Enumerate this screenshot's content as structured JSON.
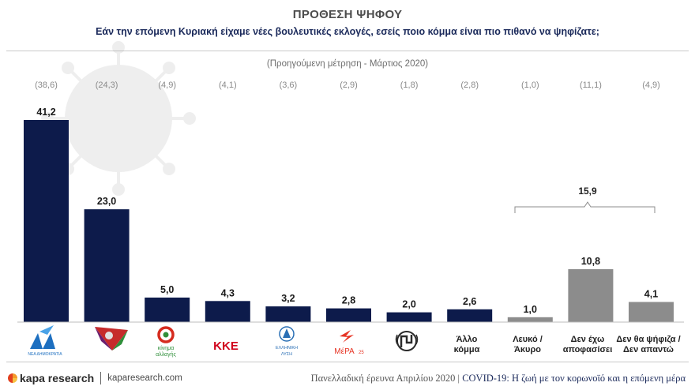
{
  "header": {
    "title": "ΠΡΟΘΕΣΗ ΨΗΦΟΥ",
    "subtitle": "Εάν την επόμενη Κυριακή είχαμε νέες βουλευτικές εκλογές, εσείς ποιο κόμμα είναι πιο πιθανό να ψηφίζατε;",
    "previous_note": "(Προηγούμενη μέτρηση - Μάρτιος 2020)"
  },
  "chart_data": {
    "type": "bar",
    "categories": [
      "ΝΔ",
      "ΣΥΡΙΖΑ",
      "ΚΙΝΑΛ",
      "ΚΚΕ",
      "Ελληνική Λύση",
      "ΜέΡΑ25",
      "Χρυσή Αυγή",
      "Άλλο κόμμα",
      "Λευκό / Άκυρο",
      "Δεν έχω αποφασίσει",
      "Δεν θα ψήφιζα / Δεν απαντώ"
    ],
    "category_labels": {
      "nd_logo_text": "ΝΕΑ ΔΗΜΟΚΡΑΤΙΑ",
      "kinal_line1": "κίνημα",
      "kinal_line2": "αλλαγής",
      "kke": "ΚΚΕ",
      "ellisi_line1": "ΕΛΛΗΝΙΚΗ",
      "ellisi_line2": "ΛΥΣΗ",
      "mera": "ΜέΡΑ",
      "mera_sub": "25",
      "allo_line1": "Άλλο",
      "allo_line2": "κόμμα",
      "lefko_line1": "Λευκό /",
      "lefko_line2": "Άκυρο",
      "den_line1": "Δεν έχω",
      "den_line2": "αποφασίσει",
      "dthps_line1": "Δεν θα ψήφιζα /",
      "dthps_line2": "Δεν απαντώ"
    },
    "values": [
      41.2,
      23.0,
      5.0,
      4.3,
      3.2,
      2.8,
      2.0,
      2.6,
      1.0,
      10.8,
      4.1
    ],
    "value_labels": [
      "41,2",
      "23,0",
      "5,0",
      "4,3",
      "3,2",
      "2,8",
      "2,0",
      "2,6",
      "1,0",
      "10,8",
      "4,1"
    ],
    "previous_labels": [
      "(38,6)",
      "(24,3)",
      "(4,9)",
      "(4,1)",
      "(3,6)",
      "(2,9)",
      "(1,8)",
      "(2,8)",
      "(1,0)",
      "(11,1)",
      "(4,9)"
    ],
    "bracket_label": "15,9",
    "colors": {
      "party": "#0d1b4b",
      "other": "#8c8c8c"
    },
    "ylim": [
      0,
      41.2
    ]
  },
  "footer": {
    "brand": "kapa research",
    "website": "kaparesearch.com",
    "survey_text": "Πανελλαδική έρευνα Απριλίου 2020 | ",
    "survey_highlight": "COVID-19: Η ζωή με τον κορωνοϊό και η επόμενη μέρα"
  }
}
